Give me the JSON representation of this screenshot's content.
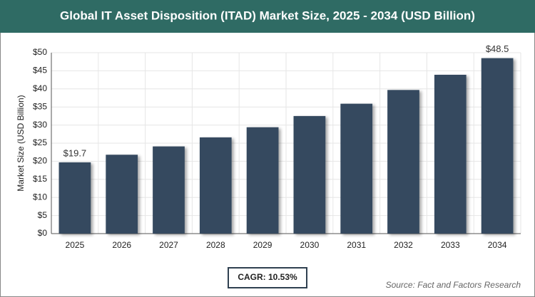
{
  "chart_data": {
    "type": "bar",
    "title": "Global IT Asset Disposition (ITAD) Market Size, 2025 - 2034 (USD Billion)",
    "y_label": "Market Size (USD Billion)",
    "categories": [
      "2025",
      "2026",
      "2027",
      "2028",
      "2029",
      "2030",
      "2031",
      "2032",
      "2033",
      "2034"
    ],
    "values": [
      19.7,
      21.8,
      24.1,
      26.6,
      29.4,
      32.5,
      35.9,
      39.7,
      43.9,
      48.5
    ],
    "value_labels": [
      "$19.7",
      null,
      null,
      null,
      null,
      null,
      null,
      null,
      null,
      "$48.5"
    ],
    "color": "#34495e",
    "ylim": [
      0,
      50
    ],
    "yticks": [
      {
        "value": 0,
        "label": "$0"
      },
      {
        "value": 5,
        "label": "$5"
      },
      {
        "value": 10,
        "label": "$10"
      },
      {
        "value": 15,
        "label": "$15"
      },
      {
        "value": 20,
        "label": "$20"
      },
      {
        "value": 25,
        "label": "$25"
      },
      {
        "value": 30,
        "label": "$30"
      },
      {
        "value": 35,
        "label": "$35"
      },
      {
        "value": 40,
        "label": "$40"
      },
      {
        "value": 45,
        "label": "$45"
      },
      {
        "value": 50,
        "label": "$50"
      }
    ],
    "grid": true,
    "annotation": "CAGR: 10.53%",
    "source": "Source: Fact and Factors Research"
  }
}
